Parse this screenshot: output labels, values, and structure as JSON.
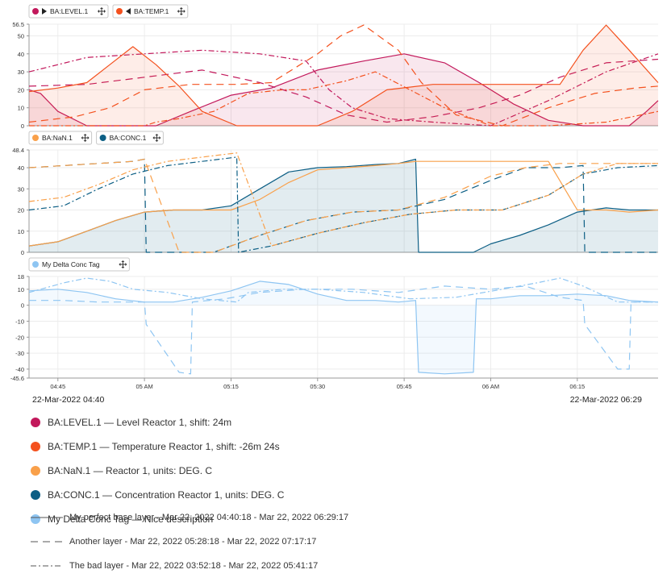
{
  "panels": [
    {
      "legend_tags": [
        {
          "label": "BA:LEVEL.1",
          "color": "#c2185b",
          "arrow": "right"
        },
        {
          "label": "BA:TEMP.1",
          "color": "#f4511e",
          "arrow": "left"
        }
      ]
    },
    {
      "legend_tags": [
        {
          "label": "BA:NaN.1",
          "color": "#f9a04a"
        },
        {
          "label": "BA:CONC.1",
          "color": "#0d5f85"
        }
      ]
    },
    {
      "legend_tags": [
        {
          "label": "My Delta Conc Tag",
          "color": "#8ec5f2"
        }
      ]
    }
  ],
  "time_axis": {
    "start_label": "22-Mar-2022 04:40",
    "end_label": "22-Mar-2022 06:29"
  },
  "legend": [
    {
      "text": "BA:LEVEL.1 — Level Reactor 1, shift: 24m",
      "color": "#c2185b"
    },
    {
      "text": "BA:TEMP.1 — Temperature Reactor 1, shift: -26m 24s",
      "color": "#f4511e"
    },
    {
      "text": "BA:NaN.1 — Reactor 1, units: DEG. C",
      "color": "#f9a04a"
    },
    {
      "text": "BA:CONC.1 — Concentration Reactor 1, units: DEG. C",
      "color": "#0d5f85"
    },
    {
      "text": "My Delta Conc Tag — Nice description",
      "color": "#8ec5f2"
    }
  ],
  "layers": [
    {
      "text": "My perfect base layer - Mar 22, 2022 04:40:18 - Mar 22, 2022 06:29:17",
      "style": "solid"
    },
    {
      "text": "Another layer - Mar 22, 2022 05:28:18 - Mar 22, 2022 07:17:17",
      "style": "dashed"
    },
    {
      "text": "The bad layer - Mar 22, 2022 03:52:18 - Mar 22, 2022 05:41:17",
      "style": "dashdot"
    }
  ],
  "chart_data": [
    {
      "type": "area",
      "x_unit": "minutes since 04:40",
      "xlim": [
        0,
        109
      ],
      "x_ticks": [
        {
          "x": 5,
          "label": "04:45"
        },
        {
          "x": 20,
          "label": "05 AM"
        },
        {
          "x": 35,
          "label": "05:15"
        },
        {
          "x": 50,
          "label": "05:30"
        },
        {
          "x": 65,
          "label": "05:45"
        },
        {
          "x": 80,
          "label": "06 AM"
        },
        {
          "x": 95,
          "label": "06:15"
        }
      ],
      "ylim": [
        0,
        56.5
      ],
      "y_ticks": [
        0,
        10,
        20,
        30,
        40,
        50,
        56.5
      ],
      "series": [
        {
          "name": "BA:LEVEL.1",
          "layer": "solid",
          "color": "#c2185b",
          "fill": true,
          "x": [
            0,
            2,
            5,
            10,
            18,
            22,
            28,
            35,
            42,
            50,
            58,
            65,
            72,
            78,
            84,
            90,
            96,
            100,
            104,
            107,
            109
          ],
          "y": [
            20,
            18,
            8,
            0,
            0,
            0,
            8,
            17,
            21,
            31,
            36,
            40,
            35,
            24,
            12,
            3,
            0,
            0,
            0,
            8,
            14
          ]
        },
        {
          "name": "BA:LEVEL.1",
          "layer": "dashed",
          "color": "#c2185b",
          "fill": false,
          "x": [
            0,
            10,
            20,
            30,
            40,
            48,
            55,
            62,
            70,
            78,
            85,
            92,
            100,
            109
          ],
          "y": [
            22,
            23,
            27,
            31,
            24,
            16,
            6,
            2,
            5,
            10,
            17,
            27,
            35,
            37
          ]
        },
        {
          "name": "BA:LEVEL.1",
          "layer": "dashdot",
          "color": "#c2185b",
          "fill": false,
          "x": [
            0,
            10,
            20,
            30,
            40,
            48,
            52,
            56,
            62,
            70,
            80,
            90,
            100,
            109
          ],
          "y": [
            30,
            38,
            40,
            42,
            40,
            36,
            20,
            10,
            4,
            2,
            0,
            14,
            30,
            40
          ]
        },
        {
          "name": "BA:TEMP.1",
          "layer": "solid",
          "color": "#f4511e",
          "fill": true,
          "x": [
            0,
            5,
            10,
            14,
            18,
            22,
            26,
            30,
            36,
            44,
            50,
            56,
            62,
            70,
            80,
            88,
            92,
            96,
            100,
            104,
            109
          ],
          "y": [
            19,
            21,
            24,
            34,
            44,
            34,
            22,
            8,
            0,
            0,
            0,
            8,
            20,
            23,
            23,
            23,
            23,
            42,
            56,
            42,
            24
          ]
        },
        {
          "name": "BA:TEMP.1",
          "layer": "dashed",
          "color": "#f4511e",
          "fill": false,
          "x": [
            0,
            8,
            14,
            20,
            28,
            36,
            42,
            50,
            54,
            58,
            64,
            68,
            74,
            82,
            90,
            98,
            105,
            109
          ],
          "y": [
            2,
            5,
            10,
            20,
            23,
            23,
            24,
            40,
            50,
            56,
            42,
            24,
            6,
            0,
            10,
            18,
            21,
            22
          ]
        },
        {
          "name": "BA:TEMP.1",
          "layer": "dashdot",
          "color": "#f4511e",
          "fill": false,
          "x": [
            0,
            10,
            20,
            22,
            26,
            32,
            38,
            44,
            48,
            55,
            60,
            66,
            72,
            80,
            90,
            100,
            109
          ],
          "y": [
            0,
            0,
            0,
            2,
            4,
            8,
            18,
            20,
            20,
            25,
            30,
            20,
            10,
            0,
            0,
            2,
            8
          ]
        }
      ]
    },
    {
      "type": "area",
      "x_unit": "minutes since 04:40",
      "xlim": [
        0,
        109
      ],
      "x_ticks": [
        {
          "x": 5,
          "label": "04:45"
        },
        {
          "x": 20,
          "label": "05 AM"
        },
        {
          "x": 35,
          "label": "05:15"
        },
        {
          "x": 50,
          "label": "05:30"
        },
        {
          "x": 65,
          "label": "05:45"
        },
        {
          "x": 80,
          "label": "06 AM"
        },
        {
          "x": 95,
          "label": "06:15"
        }
      ],
      "ylim": [
        0,
        48.4
      ],
      "y_ticks": [
        0,
        10,
        20,
        30,
        40,
        48.4
      ],
      "series": [
        {
          "name": "BA:CONC.1",
          "layer": "solid",
          "color": "#0d5f85",
          "fill": true,
          "x": [
            0,
            5,
            10,
            15,
            20,
            25,
            30,
            35,
            40,
            45,
            50,
            55,
            60,
            64,
            67,
            67.5,
            72,
            77,
            80,
            85,
            90,
            95,
            100,
            104,
            109
          ],
          "y": [
            3,
            5,
            10,
            15,
            19,
            20,
            20,
            22,
            30,
            38,
            40,
            40.5,
            41.5,
            42,
            44,
            0,
            0,
            0,
            4,
            8,
            13,
            19,
            21,
            20,
            20
          ]
        },
        {
          "name": "BA:NaN.1",
          "layer": "solid",
          "color": "#f9a04a",
          "fill": false,
          "x": [
            0,
            5,
            10,
            15,
            20,
            25,
            30,
            35,
            40,
            45,
            50,
            55,
            60,
            64,
            67,
            72,
            77,
            80,
            85,
            90,
            95,
            100,
            104,
            109
          ],
          "y": [
            3,
            5,
            10,
            15,
            19,
            20,
            20,
            20,
            25,
            33,
            39,
            40,
            41,
            42,
            43,
            43,
            43,
            43,
            43,
            43,
            20,
            20,
            19,
            20
          ]
        },
        {
          "name": "BA:CONC.1",
          "layer": "dashed",
          "color": "#0d5f85",
          "fill": false,
          "x": [
            0,
            6,
            12,
            18,
            20,
            20.3,
            26,
            32,
            40,
            48,
            56,
            64,
            72,
            80,
            86,
            92,
            96,
            96.3,
            102,
            109
          ],
          "y": [
            40,
            41,
            42,
            43,
            44,
            0,
            0,
            0,
            8,
            15,
            19,
            20,
            25,
            34,
            40,
            40,
            41,
            0,
            0,
            0
          ]
        },
        {
          "name": "BA:NaN.1",
          "layer": "dashed",
          "color": "#f9a04a",
          "fill": false,
          "x": [
            0,
            6,
            12,
            18,
            20,
            26,
            32,
            40,
            48,
            56,
            64,
            72,
            80,
            86,
            92,
            96,
            102,
            109
          ],
          "y": [
            40,
            41,
            42,
            43,
            44,
            0,
            0,
            8,
            15,
            19,
            20,
            26,
            36,
            40,
            42,
            42,
            42,
            42
          ]
        },
        {
          "name": "BA:CONC.1",
          "layer": "dashdot",
          "color": "#0d5f85",
          "fill": false,
          "x": [
            0,
            6,
            12,
            18,
            24,
            30,
            36,
            36.3,
            42,
            50,
            58,
            66,
            74,
            82,
            90,
            96,
            102,
            109
          ],
          "y": [
            20,
            22,
            30,
            37,
            41,
            43,
            45,
            0,
            3,
            9,
            14,
            18,
            20,
            20,
            27,
            37,
            40,
            41
          ]
        },
        {
          "name": "BA:NaN.1",
          "layer": "dashdot",
          "color": "#f9a04a",
          "fill": false,
          "x": [
            0,
            6,
            12,
            18,
            24,
            30,
            36,
            42,
            50,
            58,
            66,
            74,
            82,
            90,
            96,
            102,
            109
          ],
          "y": [
            24,
            26,
            32,
            39,
            43,
            45,
            47,
            3,
            9,
            14,
            18,
            20,
            20,
            27,
            37,
            42,
            42
          ]
        }
      ]
    },
    {
      "type": "area",
      "x_unit": "minutes since 04:40",
      "xlim": [
        0,
        109
      ],
      "x_ticks": [
        {
          "x": 5,
          "label": "04:45"
        },
        {
          "x": 20,
          "label": "05 AM"
        },
        {
          "x": 35,
          "label": "05:15"
        },
        {
          "x": 50,
          "label": "05:30"
        },
        {
          "x": 65,
          "label": "05:45"
        },
        {
          "x": 80,
          "label": "06 AM"
        },
        {
          "x": 95,
          "label": "06:15"
        }
      ],
      "ylim": [
        -45.6,
        18
      ],
      "y_ticks": [
        -45.6,
        -40,
        -30,
        -20,
        -10,
        0,
        10,
        18
      ],
      "series": [
        {
          "name": "My Delta Conc Tag",
          "layer": "solid",
          "color": "#8ec5f2",
          "fill": true,
          "x": [
            0,
            5,
            10,
            15,
            20,
            25,
            30,
            35,
            40,
            45,
            50,
            55,
            60,
            64,
            67,
            67.5,
            72,
            77,
            77.5,
            80,
            85,
            90,
            95,
            100,
            104,
            109
          ],
          "y": [
            9,
            10,
            8,
            4,
            2,
            2,
            5,
            9,
            15,
            13,
            7,
            3,
            3,
            2,
            3,
            -42,
            -43,
            -42,
            4,
            4,
            6,
            6,
            7,
            6,
            3,
            2
          ]
        },
        {
          "name": "My Delta Conc Tag",
          "layer": "dashed",
          "color": "#8ec5f2",
          "fill": false,
          "x": [
            0,
            6,
            12,
            18,
            20,
            20.3,
            26,
            28,
            28.3,
            34,
            40,
            48,
            56,
            64,
            72,
            80,
            86,
            92,
            96,
            96.3,
            102,
            104,
            104.3,
            109
          ],
          "y": [
            3,
            3,
            2,
            2,
            2,
            -12,
            -42,
            -43,
            2,
            4,
            8,
            10,
            10,
            8,
            12,
            10,
            12,
            5,
            3,
            -12,
            -40,
            -40,
            2,
            2
          ]
        },
        {
          "name": "My Delta Conc Tag",
          "layer": "dashdot",
          "color": "#8ec5f2",
          "fill": false,
          "x": [
            0,
            6,
            10,
            14,
            18,
            24,
            30,
            36,
            38,
            44,
            50,
            58,
            66,
            74,
            82,
            88,
            92,
            96,
            102,
            109
          ],
          "y": [
            8,
            14,
            17,
            15,
            10,
            8,
            4,
            2,
            8,
            10,
            10,
            8,
            4,
            5,
            10,
            14,
            17,
            12,
            2,
            2
          ]
        }
      ]
    }
  ]
}
